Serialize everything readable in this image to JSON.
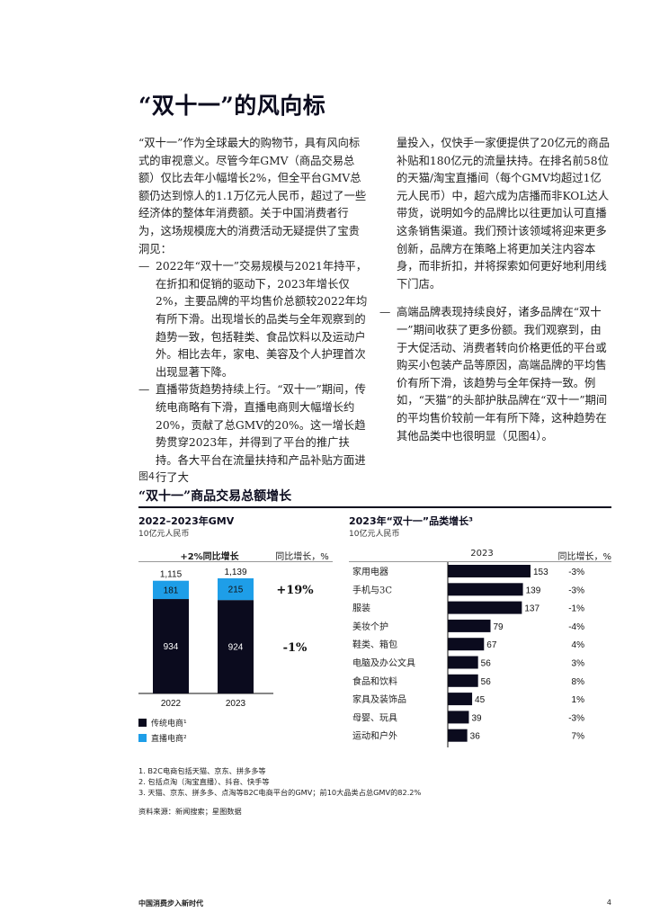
{
  "page": {
    "title": "“双十一”的风向标",
    "footer_left": "中国消费步入新时代",
    "page_number": "4"
  },
  "text": {
    "left_intro": "“双十一”作为全球最大的购物节，具有风向标式的审视意义。尽管今年GMV（商品交易总额）仅比去年小幅增长2%，但全平台GMV总额仍达到惊人的1.1万亿元人民币，超过了一些经济体的整体年消费额。关于中国消费者行为，这场规模庞大的消费活动无疑提供了宝贵洞见：",
    "bullet_1": "2022年“双十一”交易规模与2021年持平，在折扣和促销的驱动下，2023年增长仅2%，主要品牌的平均售价总额较2022年均有所下滑。出现增长的品类与全年观察到的趋势一致，包括鞋类、食品饮料以及运动户外。相比去年，家电、美容及个人护理首次出现显著下降。",
    "bullet_2": "直播带货趋势持续上行。“双十一”期间，传统电商略有下滑，直播电商则大幅增长约20%，贡献了总GMV的20%。这一增长趋势贯穿2023年，并得到了平台的推广扶持。各大平台在流量扶持和产品补贴方面进行了大",
    "right_cont": "量投入，仅快手一家便提供了20亿元的商品补贴和180亿元的流量扶持。在排名前58位的天猫/淘宝直播间（每个GMV均超过1亿元人民币）中，超六成为店播而非KOL达人带货，说明如今的品牌比以往更加认可直播这条销售渠道。我们预计该领域将迎来更多创新，品牌方在策略上将更加关注内容本身，而非折扣，并将探索如何更好地利用线下门店。",
    "bullet_3": "高端品牌表现持续良好，诸多品牌在“双十一”期间收获了更多份额。我们观察到，由于大促活动、消费者转向价格更低的平台或购买小包装产品等原因，高端品牌的平均售价有所下滑，该趋势与全年保持一致。例如，“天猫”的头部护肤品牌在“双十一”期间的平均售价较前一年有所下降，这种趋势在其他品类中也很明显（见图4）。",
    "bullet_dash": "—"
  },
  "figure": {
    "label": "图4",
    "title": "“双十一”商品交易总额增长",
    "footnote_1": "1. B2C电商包括天猫、京东、拼多多等",
    "footnote_2": "2. 包括点淘（淘宝直播）、抖音、快手等",
    "footnote_3": "3. 天猫、京东、拼多多、点淘等B2C电商平台的GMV；前10大品类占总GMV的82.2%",
    "source": "资料来源：新闻搜索；星图数据"
  },
  "chart_data": [
    {
      "type": "bar",
      "stacked": true,
      "title": "2022–2023年GMV",
      "subtitle": "10亿元人民币",
      "header_left": "+2%同比增长",
      "header_right": "同比增长，%",
      "categories": [
        "2022",
        "2023"
      ],
      "totals": [
        1115,
        1139
      ],
      "total_labels": [
        "1,115",
        "1,139"
      ],
      "series": [
        {
          "name": "传统电商¹",
          "values": [
            934,
            924
          ],
          "color": "#0b0b1e",
          "yoy": "-1%"
        },
        {
          "name": "直播电商²",
          "values": [
            181,
            215
          ],
          "color": "#1e9ee8",
          "yoy": "+19%"
        }
      ],
      "ylim": [
        0,
        1139
      ]
    },
    {
      "type": "bar",
      "orientation": "horizontal",
      "title": "2023年“双十一”品类增长³",
      "subtitle": "10亿元人民币",
      "column_header": "2023",
      "yoy_header": "同比增长，%",
      "categories": [
        "家用电器",
        "手机与3C",
        "服装",
        "美妆个护",
        "鞋类、箱包",
        "电脑及办公文具",
        "食品和饮料",
        "家具及装饰品",
        "母婴、玩具",
        "运动和户外"
      ],
      "values": [
        153,
        139,
        137,
        79,
        67,
        56,
        56,
        45,
        39,
        36
      ],
      "yoy": [
        "-3%",
        "-3%",
        "-1%",
        "-4%",
        "4%",
        "3%",
        "8%",
        "1%",
        "-3%",
        "7%"
      ],
      "color": "#0b0b1e",
      "xlim": [
        0,
        153
      ]
    }
  ]
}
